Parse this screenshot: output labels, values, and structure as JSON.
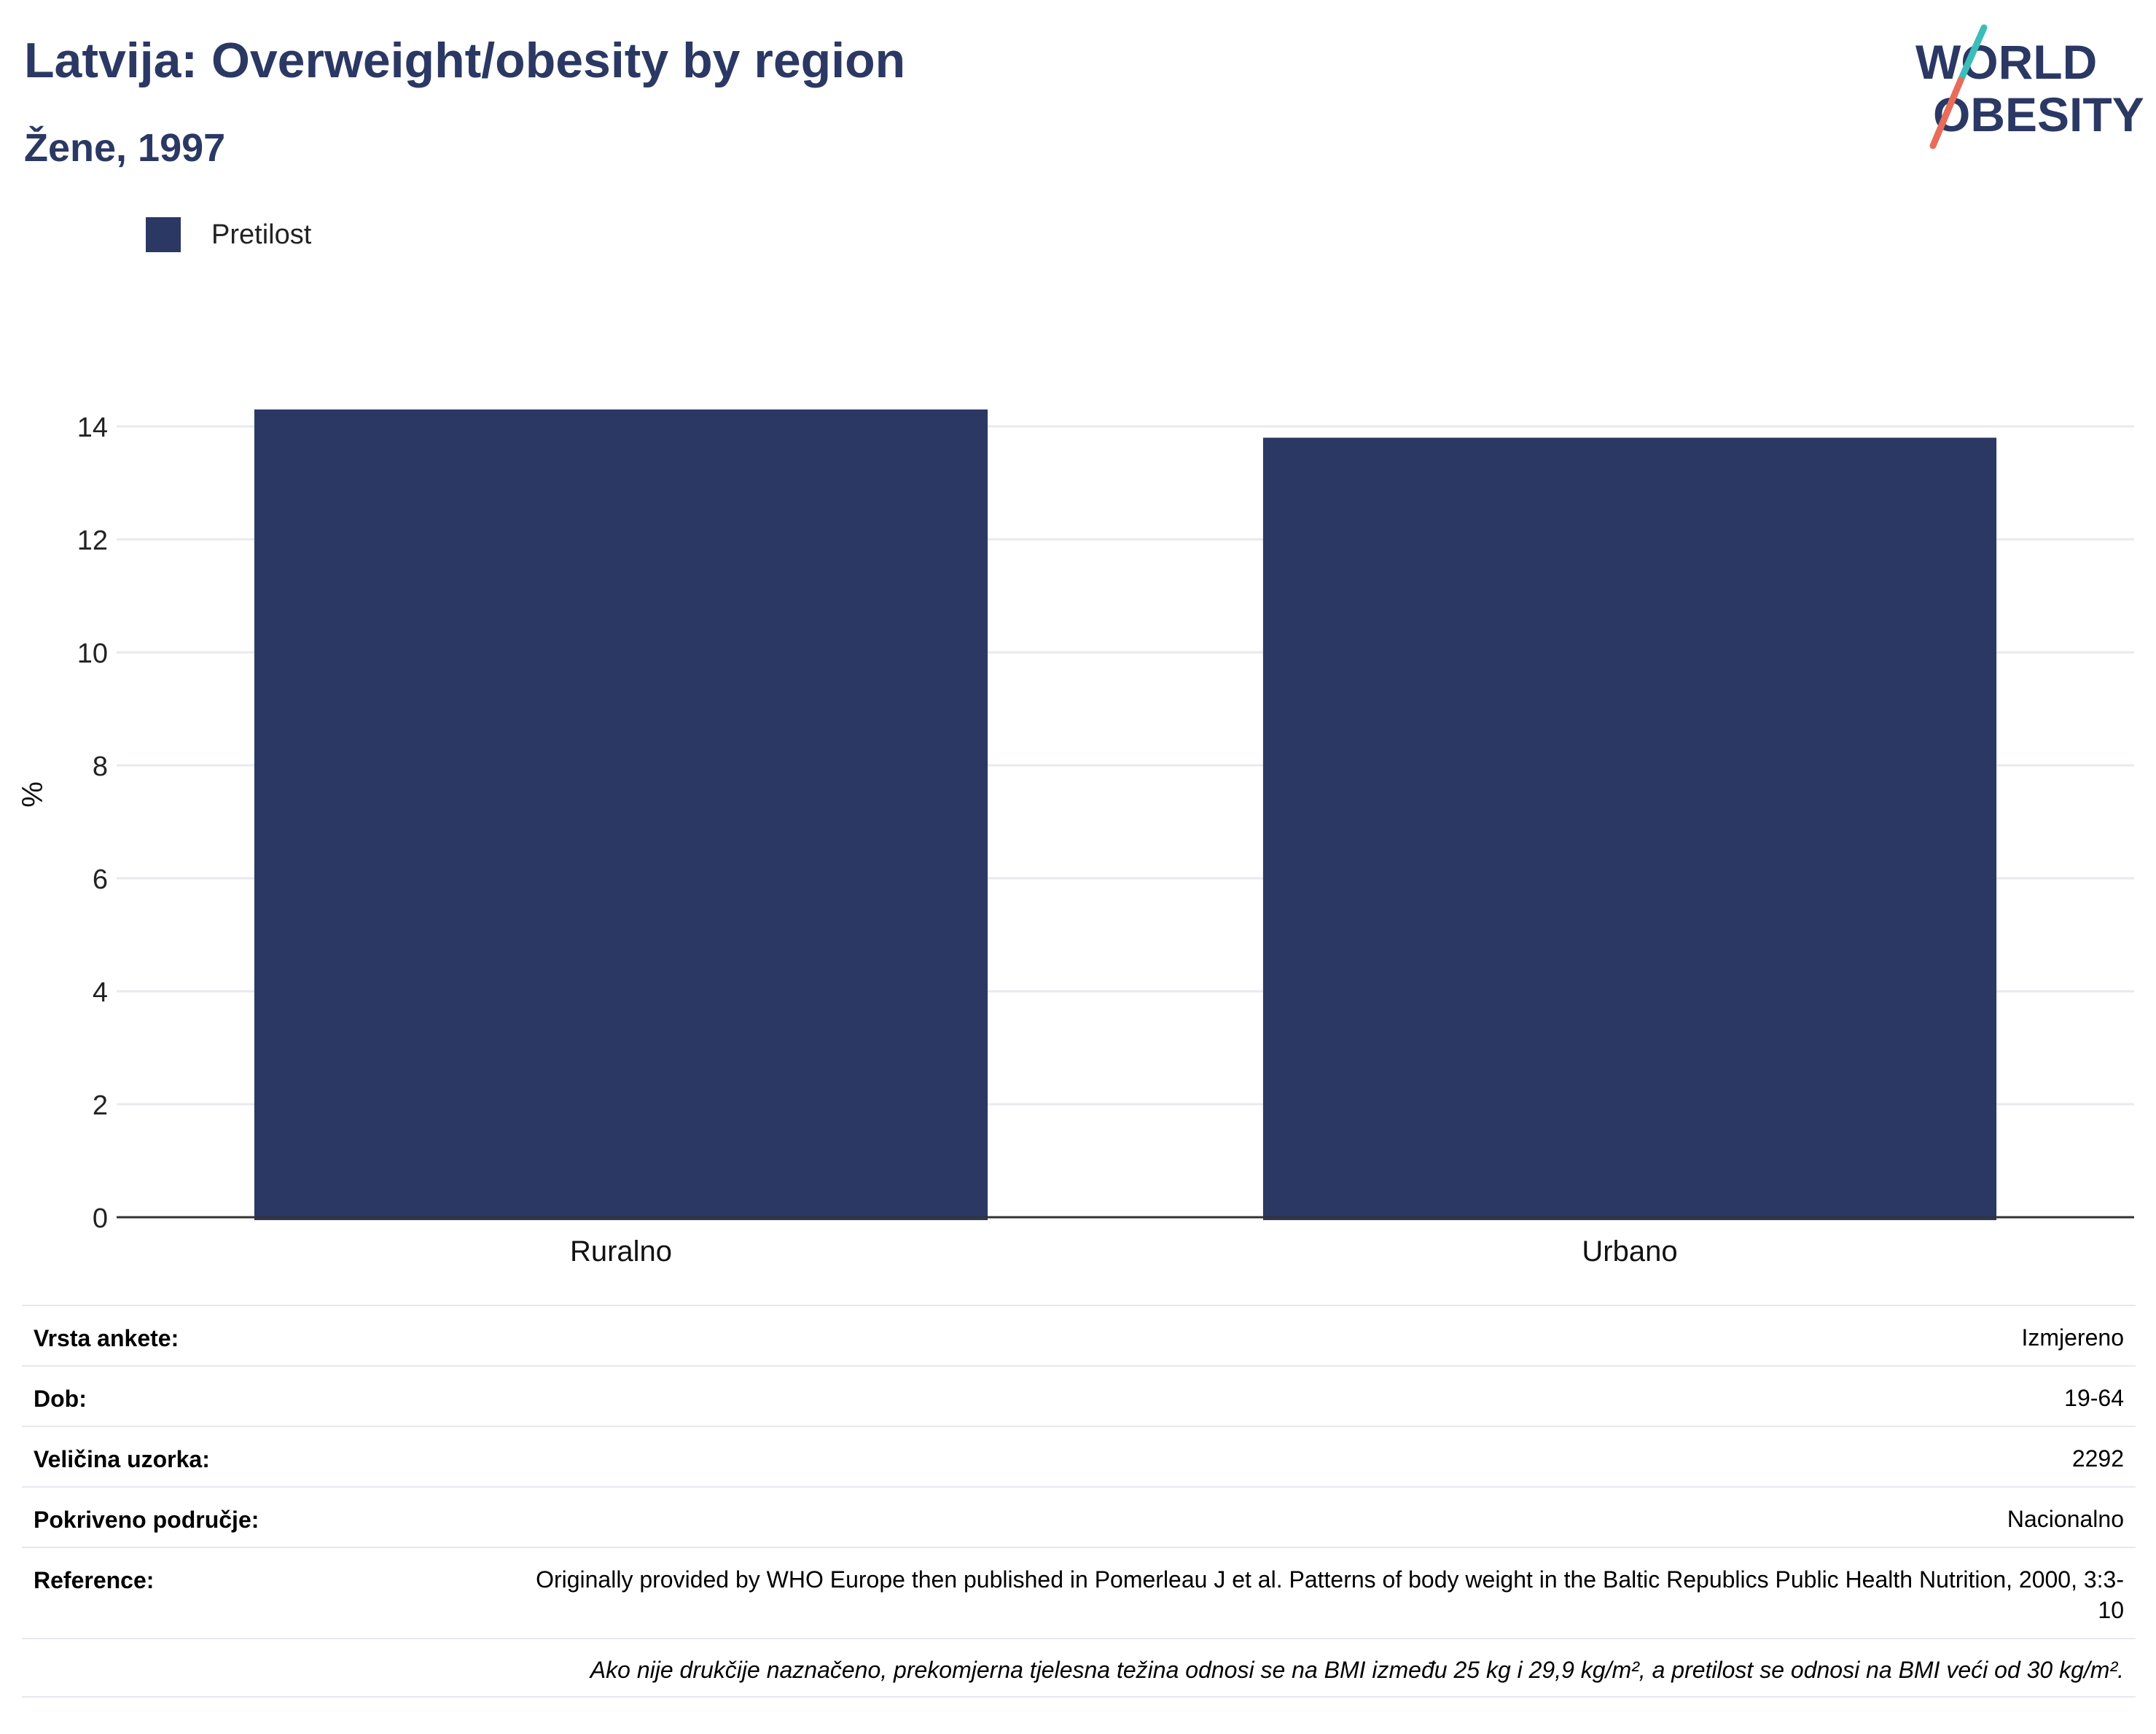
{
  "header": {
    "title": "Latvija: Overweight/obesity by region",
    "subtitle": "Žene, 1997"
  },
  "logo": {
    "line1": "WORLD",
    "line2": "OBESITY",
    "text_color": "#2b3864",
    "slash_colors": [
      "#3dbdb9",
      "#e86c5a"
    ]
  },
  "chart_data": {
    "type": "bar",
    "categories": [
      "Ruralno",
      "Urbano"
    ],
    "series": [
      {
        "name": "Pretilost",
        "values": [
          14.3,
          13.8
        ],
        "color": "#2b3864"
      }
    ],
    "ylabel": "%",
    "ylim": [
      0,
      14.6
    ],
    "yticks": [
      0,
      2,
      4,
      6,
      8,
      10,
      12,
      14
    ],
    "grid": true,
    "legend_position": "top-left"
  },
  "meta": {
    "rows": [
      {
        "label": "Vrsta ankete:",
        "value": "Izmjereno"
      },
      {
        "label": "Dob:",
        "value": "19-64"
      },
      {
        "label": "Veličina uzorka:",
        "value": "2292"
      },
      {
        "label": "Pokriveno područje:",
        "value": "Nacionalno"
      },
      {
        "label": "Reference:",
        "value": "Originally provided by WHO Europe then published in Pomerleau J et al. Patterns of body weight in the Baltic Republics Public Health Nutrition, 2000, 3:3-10"
      }
    ],
    "note": "Ako nije drukčije naznačeno, prekomjerna tjelesna težina odnosi se na BMI između 25 kg i 29,9 kg/m², a pretilost se odnosi na BMI veći od 30 kg/m²."
  }
}
